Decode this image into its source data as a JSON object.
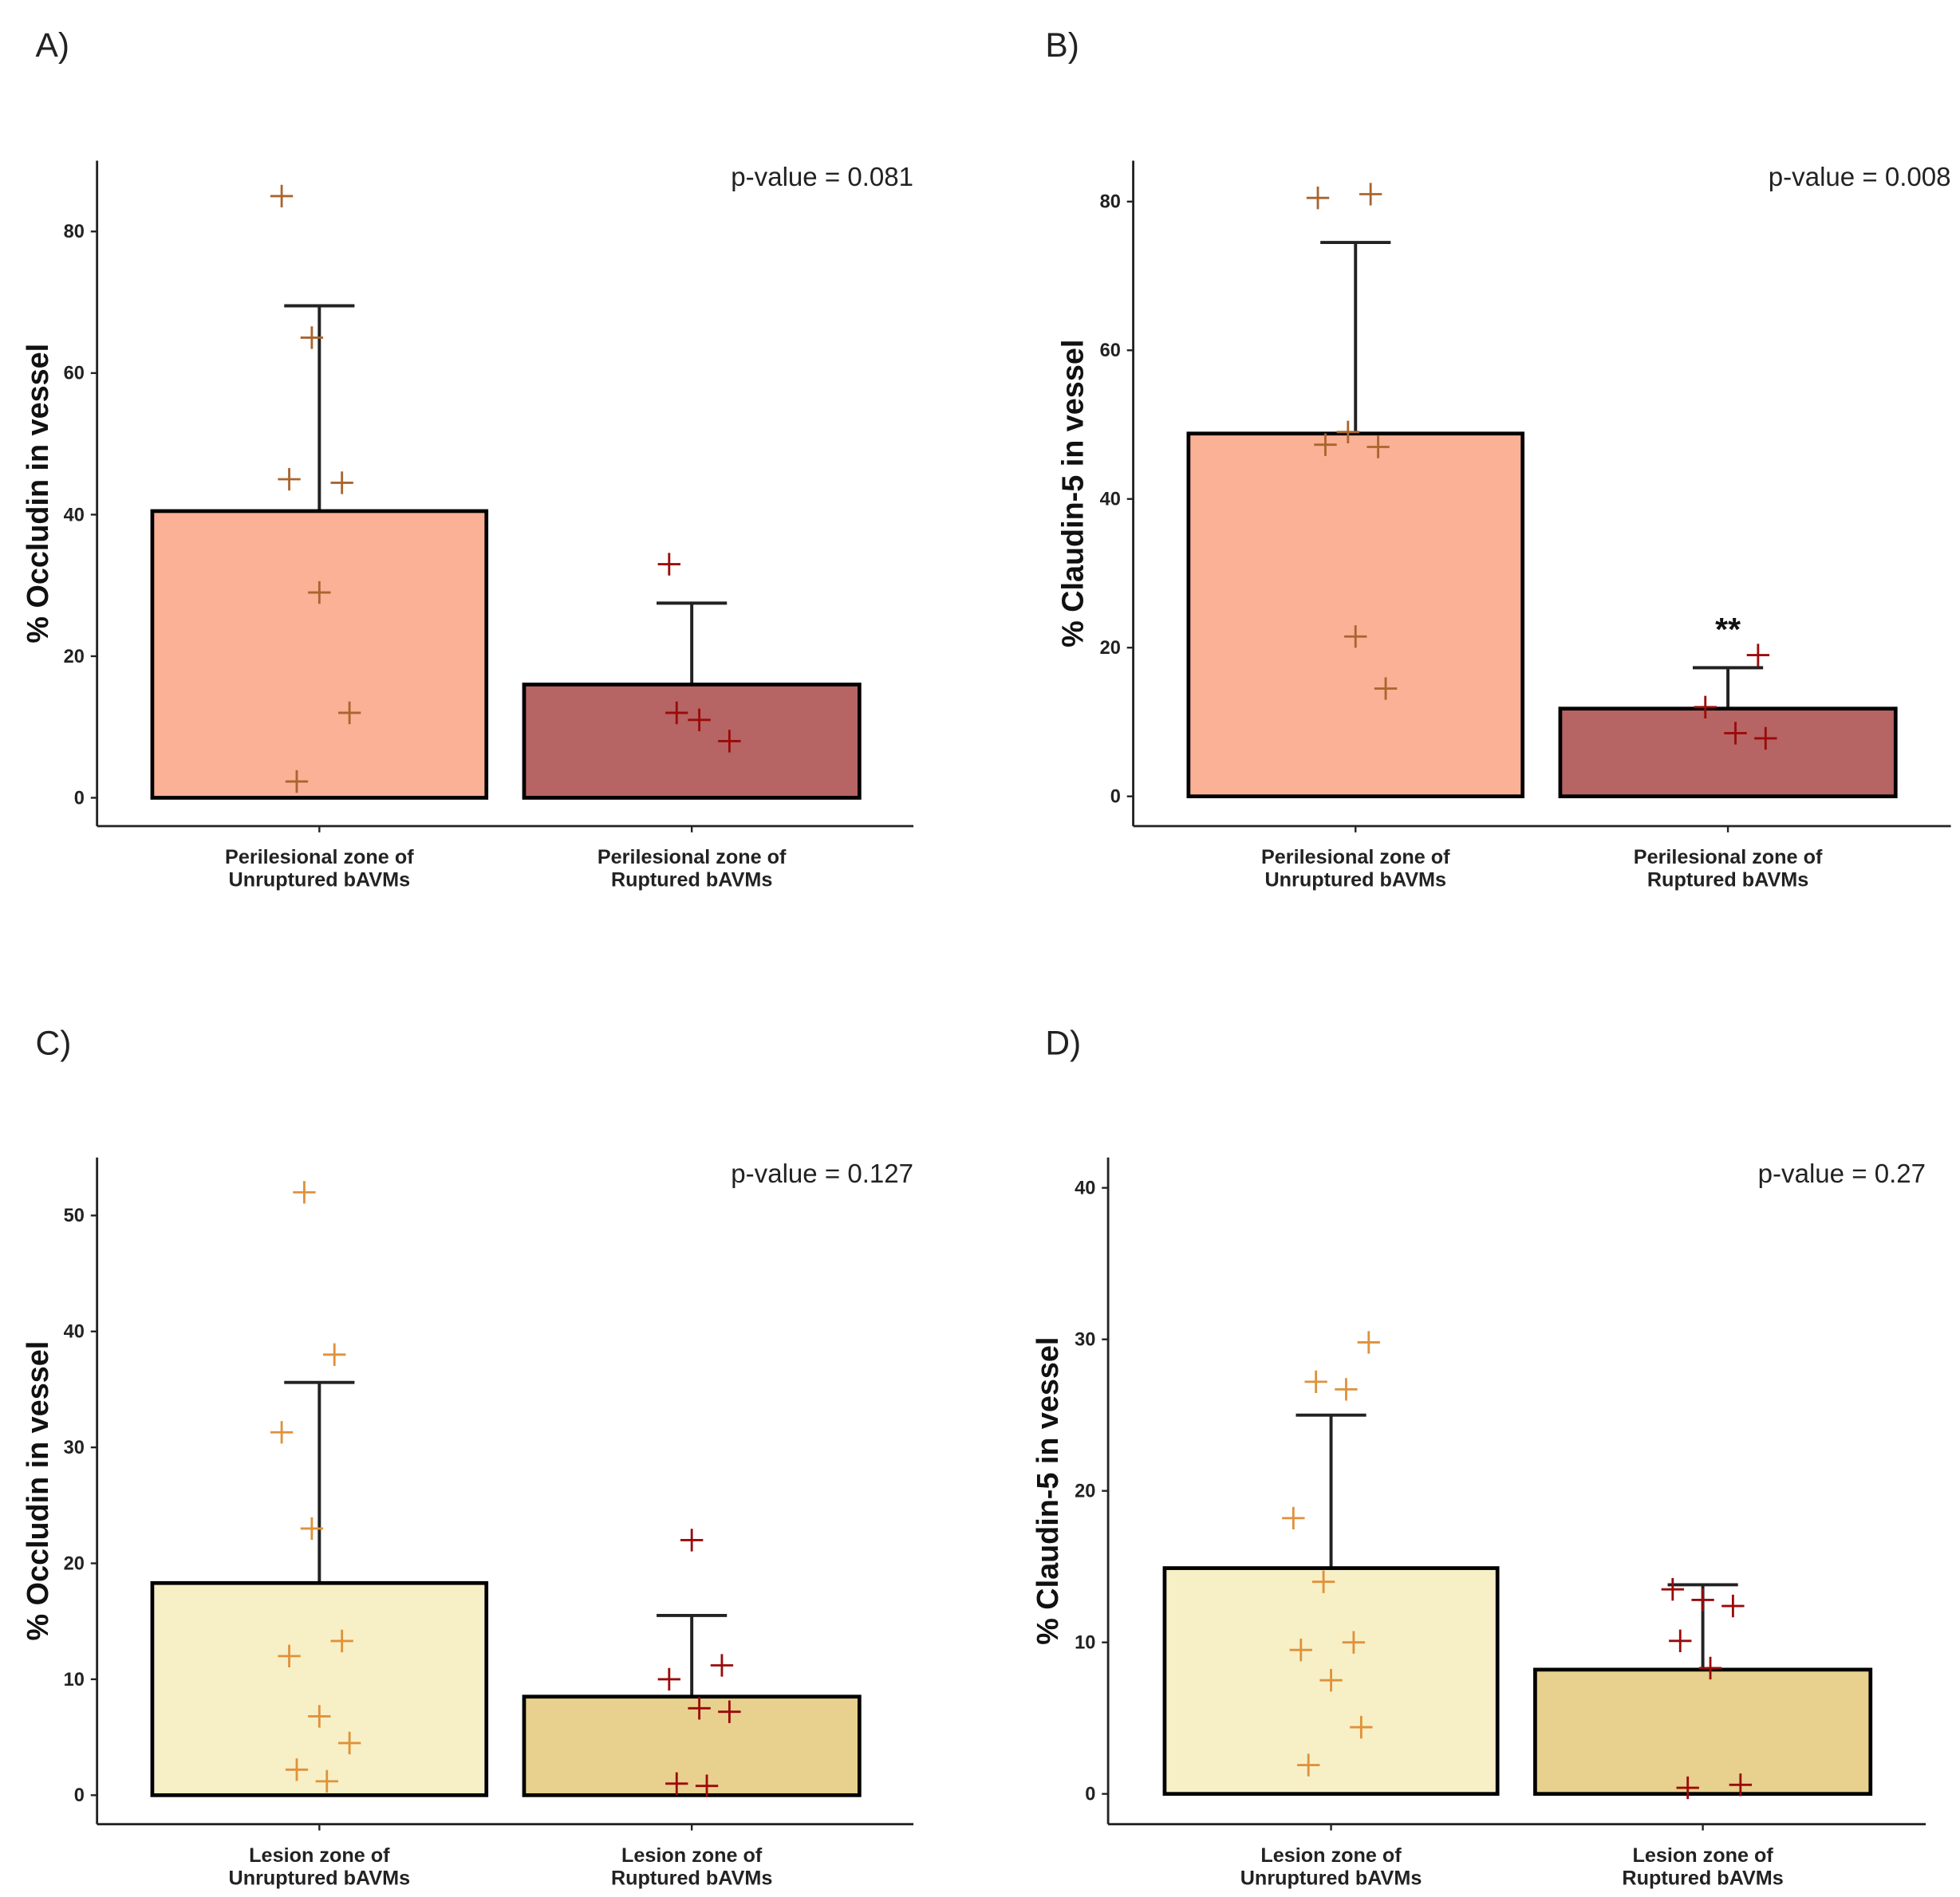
{
  "chart_data": [
    {
      "type": "bar",
      "panel_label": "A)",
      "ylabel": "% Occludin in vessel",
      "ylim": [
        -4,
        90
      ],
      "yticks": [
        0,
        20,
        40,
        60,
        80
      ],
      "annotation": "p-value = 0.081",
      "categories": [
        [
          "Perilesional zone of",
          "Unruptured bAVMs"
        ],
        [
          "Perilesional zone of",
          "Ruptured bAVMs"
        ]
      ],
      "means": [
        40.5,
        16
      ],
      "error_upper": [
        69.5,
        27.5
      ],
      "bar_colors": [
        "#FBB196",
        "#B66464"
      ],
      "point_colors": [
        "#A9652F",
        "#9B0A0A"
      ],
      "points": [
        [
          85,
          65,
          44.5,
          45,
          29,
          12,
          2.3
        ],
        [
          33,
          11,
          8,
          12
        ]
      ],
      "significance": [
        "",
        ""
      ]
    },
    {
      "type": "bar",
      "panel_label": "B)",
      "ylabel": "% Claudin-5 in vessel",
      "ylim": [
        -4,
        85.5
      ],
      "yticks": [
        0,
        20,
        40,
        60,
        80
      ],
      "annotation": "p-value = 0.008",
      "categories": [
        [
          "Perilesional zone of",
          "Unruptured bAVMs"
        ],
        [
          "Perilesional zone of",
          "Ruptured bAVMs"
        ]
      ],
      "means": [
        48.8,
        11.8
      ],
      "error_upper": [
        74.5,
        17.3
      ],
      "bar_colors": [
        "#FBB196",
        "#B66464"
      ],
      "point_colors": [
        "#A9652F",
        "#9B0A0A"
      ],
      "points": [
        [
          81,
          80.5,
          49,
          47,
          47.3,
          21.5,
          14.5
        ],
        [
          19,
          12,
          8.5,
          7.8
        ]
      ],
      "significance": [
        "",
        "**"
      ]
    },
    {
      "type": "bar",
      "panel_label": "C)",
      "ylabel": "% Occludin in vessel",
      "ylim": [
        -2.5,
        55
      ],
      "yticks": [
        0,
        10,
        20,
        30,
        40,
        50
      ],
      "annotation": "p-value = 0.127",
      "categories": [
        [
          "Lesion zone of",
          "Unruptured bAVMs"
        ],
        [
          "Lesion zone of",
          "Ruptured bAVMs"
        ]
      ],
      "means": [
        18.3,
        8.5
      ],
      "error_upper": [
        35.6,
        15.5
      ],
      "bar_colors": [
        "#F7F0C6",
        "#E8D08E"
      ],
      "point_colors": [
        "#E0913A",
        "#9B0A0A"
      ],
      "points": [
        [
          52,
          38,
          31.3,
          23,
          13.3,
          12,
          6.8,
          4.5,
          2.2,
          1.2
        ],
        [
          22,
          11.2,
          10,
          7.5,
          7.2,
          1,
          0.8
        ]
      ],
      "significance": [
        "",
        ""
      ]
    },
    {
      "type": "bar",
      "panel_label": "D)",
      "ylabel": "% Claudin-5 in vessel",
      "ylim": [
        -2,
        42
      ],
      "yticks": [
        0,
        10,
        20,
        30,
        40
      ],
      "annotation": "p-value = 0.27",
      "categories": [
        [
          "Lesion zone of",
          "Unruptured bAVMs"
        ],
        [
          "Lesion zone of",
          "Ruptured bAVMs"
        ]
      ],
      "means": [
        14.9,
        8.2
      ],
      "error_upper": [
        25,
        13.8
      ],
      "bar_colors": [
        "#F7F0C6",
        "#E8D08E"
      ],
      "point_colors": [
        "#E0913A",
        "#9B0A0A"
      ],
      "points": [
        [
          29.8,
          27.2,
          26.7,
          18.2,
          14,
          10,
          9.5,
          7.5,
          4.4,
          1.9
        ],
        [
          13.5,
          12.8,
          12.4,
          10.1,
          8.3,
          0.6,
          0.4
        ]
      ],
      "significance": [
        "",
        ""
      ]
    }
  ]
}
